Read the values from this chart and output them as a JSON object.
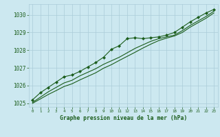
{
  "title": "Graphe pression niveau de la mer (hPa)",
  "bg_color": "#cce8f0",
  "grid_color": "#aaccd8",
  "line_color": "#1a5c1a",
  "xlim": [
    -0.5,
    23.5
  ],
  "ylim": [
    1024.8,
    1030.6
  ],
  "yticks": [
    1025,
    1026,
    1027,
    1028,
    1029,
    1030
  ],
  "xticks": [
    0,
    1,
    2,
    3,
    4,
    5,
    6,
    7,
    8,
    9,
    10,
    11,
    12,
    13,
    14,
    15,
    16,
    17,
    18,
    19,
    20,
    21,
    22,
    23
  ],
  "series": [
    {
      "x": [
        0,
        1,
        2,
        3,
        4,
        5,
        6,
        7,
        8,
        9,
        10,
        11,
        12,
        13,
        14,
        15,
        16,
        17,
        18,
        19,
        20,
        21,
        22,
        23
      ],
      "y": [
        1025.2,
        1025.6,
        1025.9,
        1026.2,
        1026.5,
        1026.6,
        1026.8,
        1027.05,
        1027.3,
        1027.6,
        1028.05,
        1028.25,
        1028.65,
        1028.7,
        1028.65,
        1028.7,
        1028.75,
        1028.85,
        1029.0,
        1029.3,
        1029.6,
        1029.85,
        1030.1,
        1030.3
      ],
      "markers": true
    },
    {
      "x": [
        0,
        1,
        2,
        3,
        4,
        5,
        6,
        7,
        8,
        9,
        10,
        11,
        12,
        13,
        14,
        15,
        16,
        17,
        18,
        19,
        20,
        21,
        22,
        23
      ],
      "y": [
        1025.05,
        1025.35,
        1025.65,
        1025.9,
        1026.15,
        1026.3,
        1026.55,
        1026.75,
        1026.95,
        1027.2,
        1027.4,
        1027.6,
        1027.85,
        1028.1,
        1028.3,
        1028.5,
        1028.65,
        1028.75,
        1028.85,
        1029.1,
        1029.4,
        1029.65,
        1029.9,
        1030.2
      ],
      "markers": false
    },
    {
      "x": [
        0,
        1,
        2,
        3,
        4,
        5,
        6,
        7,
        8,
        9,
        10,
        11,
        12,
        13,
        14,
        15,
        16,
        17,
        18,
        19,
        20,
        21,
        22,
        23
      ],
      "y": [
        1025.0,
        1025.25,
        1025.5,
        1025.72,
        1025.95,
        1026.1,
        1026.32,
        1026.52,
        1026.72,
        1026.98,
        1027.18,
        1027.42,
        1027.65,
        1027.88,
        1028.12,
        1028.34,
        1028.54,
        1028.68,
        1028.8,
        1029.0,
        1029.3,
        1029.55,
        1029.8,
        1030.1
      ],
      "markers": false
    }
  ]
}
